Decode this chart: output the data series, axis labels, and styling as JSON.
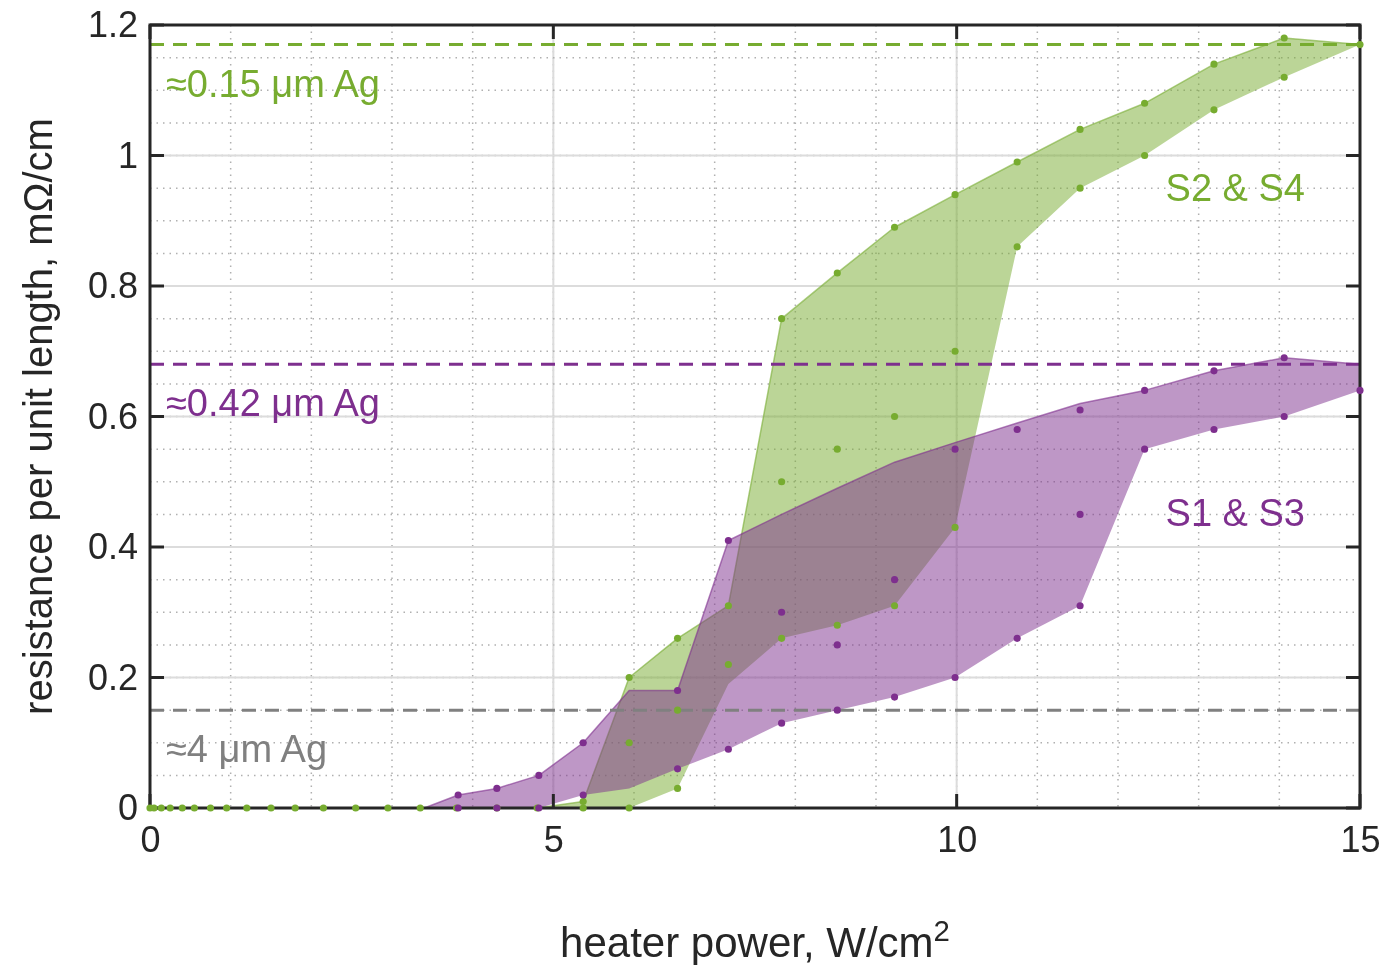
{
  "chart_data": {
    "type": "scatter",
    "xlabel": "heater power, W/cm$^{2}$",
    "ylabel": "resistance per unit length, mΩ/cm",
    "xlim": [
      0,
      15
    ],
    "ylim": [
      0,
      1.2
    ],
    "xticks": [
      0,
      5,
      10,
      15
    ],
    "yticks": [
      0,
      0.2,
      0.4,
      0.6,
      0.8,
      {
        "value": 1,
        "label": "1"
      },
      1.2
    ],
    "grid": true,
    "series": [
      {
        "type": "line",
        "color": "#77ac30",
        "x": [
          0,
          4.8,
          5.37,
          5.94,
          6.54,
          7.17,
          7.83,
          8.52,
          9.23,
          9.98,
          10.75,
          11.53,
          12.33,
          13.19,
          14.06,
          15
        ],
        "values": [
          0,
          0,
          0.01,
          0.2,
          0.26,
          0.31,
          0.75,
          0.82,
          0.89,
          0.94,
          0.99,
          1.04,
          1.08,
          1.14,
          1.18,
          1.17
        ],
        "upper": [
          0,
          0,
          0.01,
          0.2,
          0.26,
          0.31,
          0.75,
          0.82,
          0.89,
          0.94,
          0.99,
          1.04,
          1.08,
          1.14,
          1.18,
          1.17
        ],
        "lower": [
          0,
          0,
          0,
          0,
          0.03,
          0.19,
          0.26,
          0.28,
          0.31,
          0.43,
          0.86,
          0.95,
          1.0,
          1.07,
          1.12,
          1.17
        ]
      },
      {
        "type": "line",
        "color": "#7e2f8e",
        "x": [
          3.4,
          3.82,
          4.3,
          4.82,
          5.37,
          5.94,
          6.54,
          7.17,
          7.83,
          8.52,
          9.23,
          9.98,
          10.75,
          11.53,
          12.33,
          13.19,
          14.06,
          15
        ],
        "values": [
          0,
          0.02,
          0.03,
          0.05,
          0.1,
          0.18,
          0.18,
          0.41,
          0.45,
          0.49,
          0.53,
          0.56,
          0.59,
          0.62,
          0.64,
          0.67,
          0.69,
          0.68
        ],
        "upper": [
          0,
          0.02,
          0.03,
          0.05,
          0.1,
          0.18,
          0.18,
          0.41,
          0.45,
          0.49,
          0.53,
          0.56,
          0.59,
          0.62,
          0.64,
          0.67,
          0.69,
          0.68
        ],
        "lower": [
          0,
          0,
          0,
          0,
          0.02,
          0.03,
          0.06,
          0.09,
          0.13,
          0.15,
          0.17,
          0.2,
          0.26,
          0.31,
          0.55,
          0.58,
          0.6,
          0.64
        ]
      },
      {
        "name": "S2 & S4",
        "marker": "circle",
        "color": "#77ac30",
        "x": [
          0,
          0.05,
          0.14,
          0.25,
          0.4,
          0.55,
          0.75,
          0.95,
          1.2,
          1.5,
          1.8,
          2.15,
          2.55,
          2.95,
          3.35,
          3.8,
          4.3,
          4.8,
          5.37,
          5.37,
          5.94,
          5.94,
          5.94,
          6.54,
          6.54,
          6.54,
          7.17,
          7.17,
          7.83,
          7.83,
          7.83,
          8.52,
          8.52,
          8.52,
          9.23,
          9.23,
          9.23,
          9.98,
          9.98,
          9.98,
          10.75,
          10.75,
          11.53,
          11.53,
          12.33,
          12.33,
          13.19,
          13.19,
          14.06,
          14.06,
          15
        ],
        "values": [
          0,
          0,
          0,
          0,
          0,
          0,
          0,
          0,
          0,
          0,
          0,
          0,
          0,
          0,
          0,
          0,
          0,
          0,
          0,
          0.01,
          0,
          0.1,
          0.2,
          0.03,
          0.15,
          0.26,
          0.22,
          0.31,
          0.26,
          0.5,
          0.75,
          0.28,
          0.55,
          0.82,
          0.31,
          0.6,
          0.89,
          0.43,
          0.7,
          0.94,
          0.86,
          0.99,
          0.95,
          1.04,
          1.0,
          1.08,
          1.07,
          1.14,
          1.12,
          1.18,
          1.17
        ]
      },
      {
        "name": "S1 & S3",
        "marker": "circle",
        "color": "#7e2f8e",
        "x": [
          3.82,
          3.82,
          4.3,
          4.3,
          4.82,
          4.82,
          5.37,
          5.37,
          6.54,
          6.54,
          7.17,
          7.17,
          7.83,
          7.83,
          8.52,
          8.52,
          9.23,
          9.23,
          9.98,
          9.98,
          10.75,
          10.75,
          11.53,
          11.53,
          11.53,
          12.33,
          12.33,
          13.19,
          13.19,
          14.06,
          14.06,
          15
        ],
        "values": [
          0,
          0.02,
          0,
          0.03,
          0,
          0.05,
          0.02,
          0.1,
          0.06,
          0.18,
          0.09,
          0.41,
          0.13,
          0.3,
          0.15,
          0.25,
          0.17,
          0.35,
          0.2,
          0.55,
          0.26,
          0.58,
          0.31,
          0.45,
          0.61,
          0.55,
          0.64,
          0.58,
          0.67,
          0.6,
          0.69,
          0.64
        ]
      }
    ],
    "ref_lines": [
      {
        "axis": "y",
        "value": 1.17,
        "label": "≈0.15 μm Ag",
        "color": "#77ac30",
        "line_style": "dashed"
      },
      {
        "axis": "y",
        "value": 0.68,
        "label": "≈0.42 μm Ag",
        "color": "#7e2f8e",
        "line_style": "dashed"
      },
      {
        "axis": "y",
        "value": 0.15,
        "label": "≈4 μm Ag",
        "color": "#808080",
        "line_style": "dashed"
      }
    ]
  }
}
